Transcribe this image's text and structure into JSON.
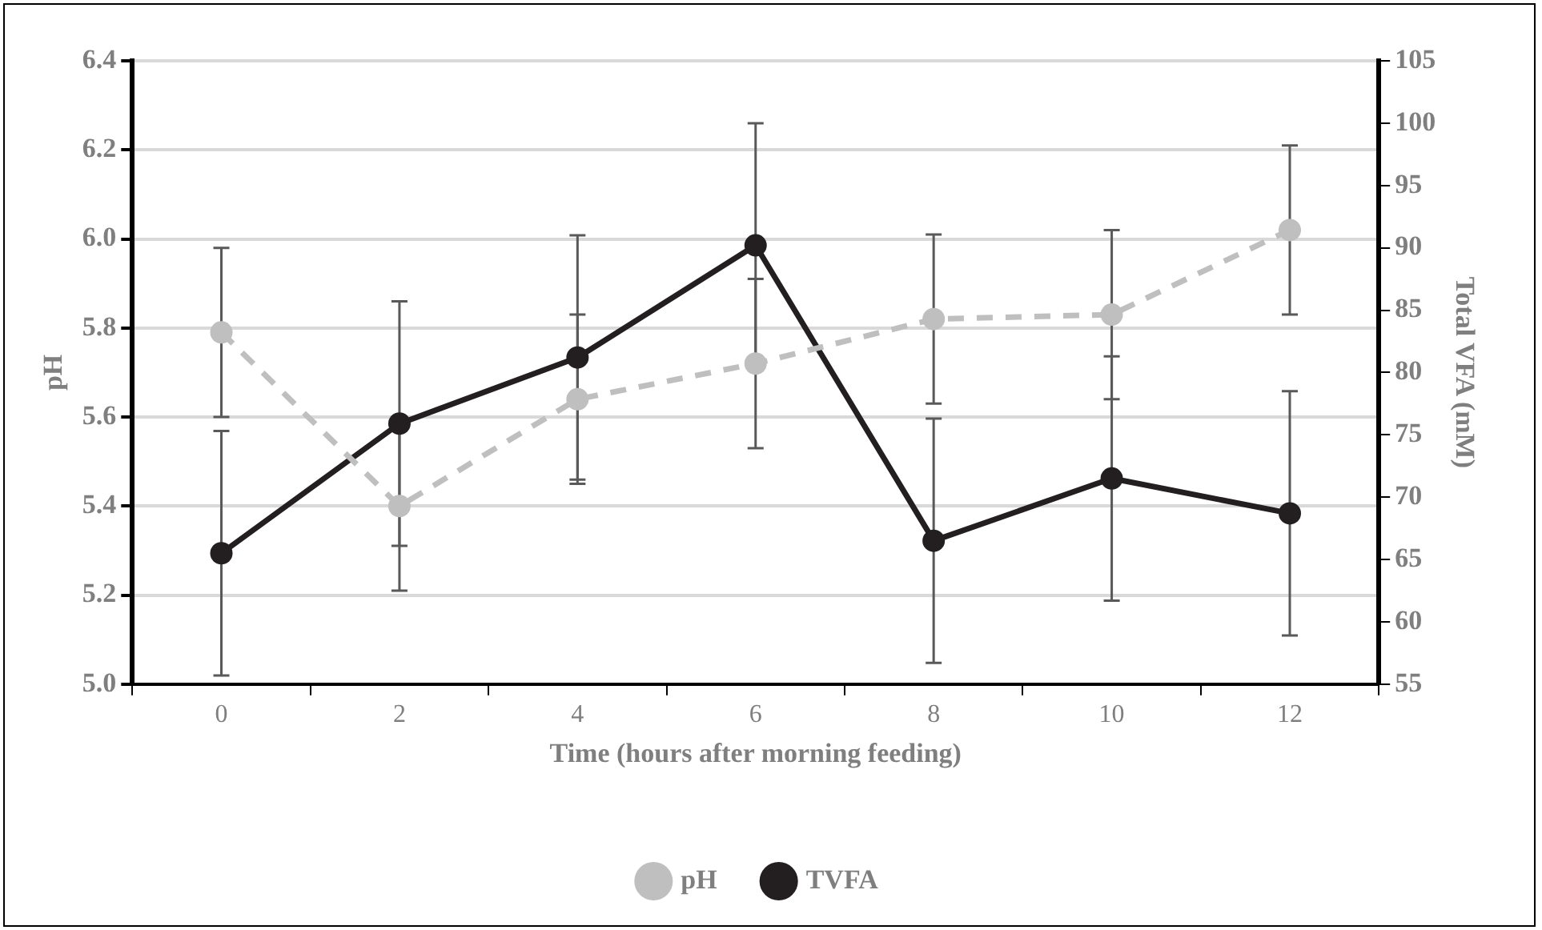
{
  "chart_data": {
    "type": "line",
    "xlabel": "Time (hours after morning feeding)",
    "ylabel": "pH",
    "y2label": "Total VFA (mM)",
    "categories": [
      "0",
      "2",
      "4",
      "6",
      "8",
      "10",
      "12"
    ],
    "ylim": [
      5.0,
      6.4
    ],
    "yticks": [
      {
        "value": 5.0,
        "label": "5.0"
      },
      {
        "value": 5.2,
        "label": "5.2"
      },
      {
        "value": 5.4,
        "label": "5.4"
      },
      {
        "value": 5.6,
        "label": "5.6"
      },
      {
        "value": 5.8,
        "label": "5.8"
      },
      {
        "value": 6.0,
        "label": "6.0"
      },
      {
        "value": 6.2,
        "label": "6.2"
      },
      {
        "value": 6.4,
        "label": "6.4"
      }
    ],
    "y2lim": [
      55,
      105
    ],
    "y2ticks": [
      55,
      60,
      65,
      70,
      75,
      80,
      85,
      90,
      95,
      100,
      105
    ],
    "grid": "y",
    "legend": "bottom",
    "marker": "circle",
    "series": [
      {
        "name": "pH",
        "color": "#bfbfbf",
        "line_style": "dashed",
        "values": [
          5.79,
          5.4,
          5.64,
          5.72,
          5.82,
          5.83,
          6.02
        ],
        "errors": [
          0.19,
          0.19,
          0.19,
          0.19,
          0.19,
          0.19,
          0.19
        ]
      },
      {
        "name": "TVFA",
        "color": "#231f20",
        "axis": "y2",
        "line_style": "solid",
        "values": [
          65.5,
          75.9,
          81.2,
          90.2,
          66.5,
          71.5,
          68.7
        ],
        "errors": [
          9.8,
          9.8,
          9.8,
          9.8,
          9.8,
          9.8,
          9.8
        ]
      }
    ]
  }
}
